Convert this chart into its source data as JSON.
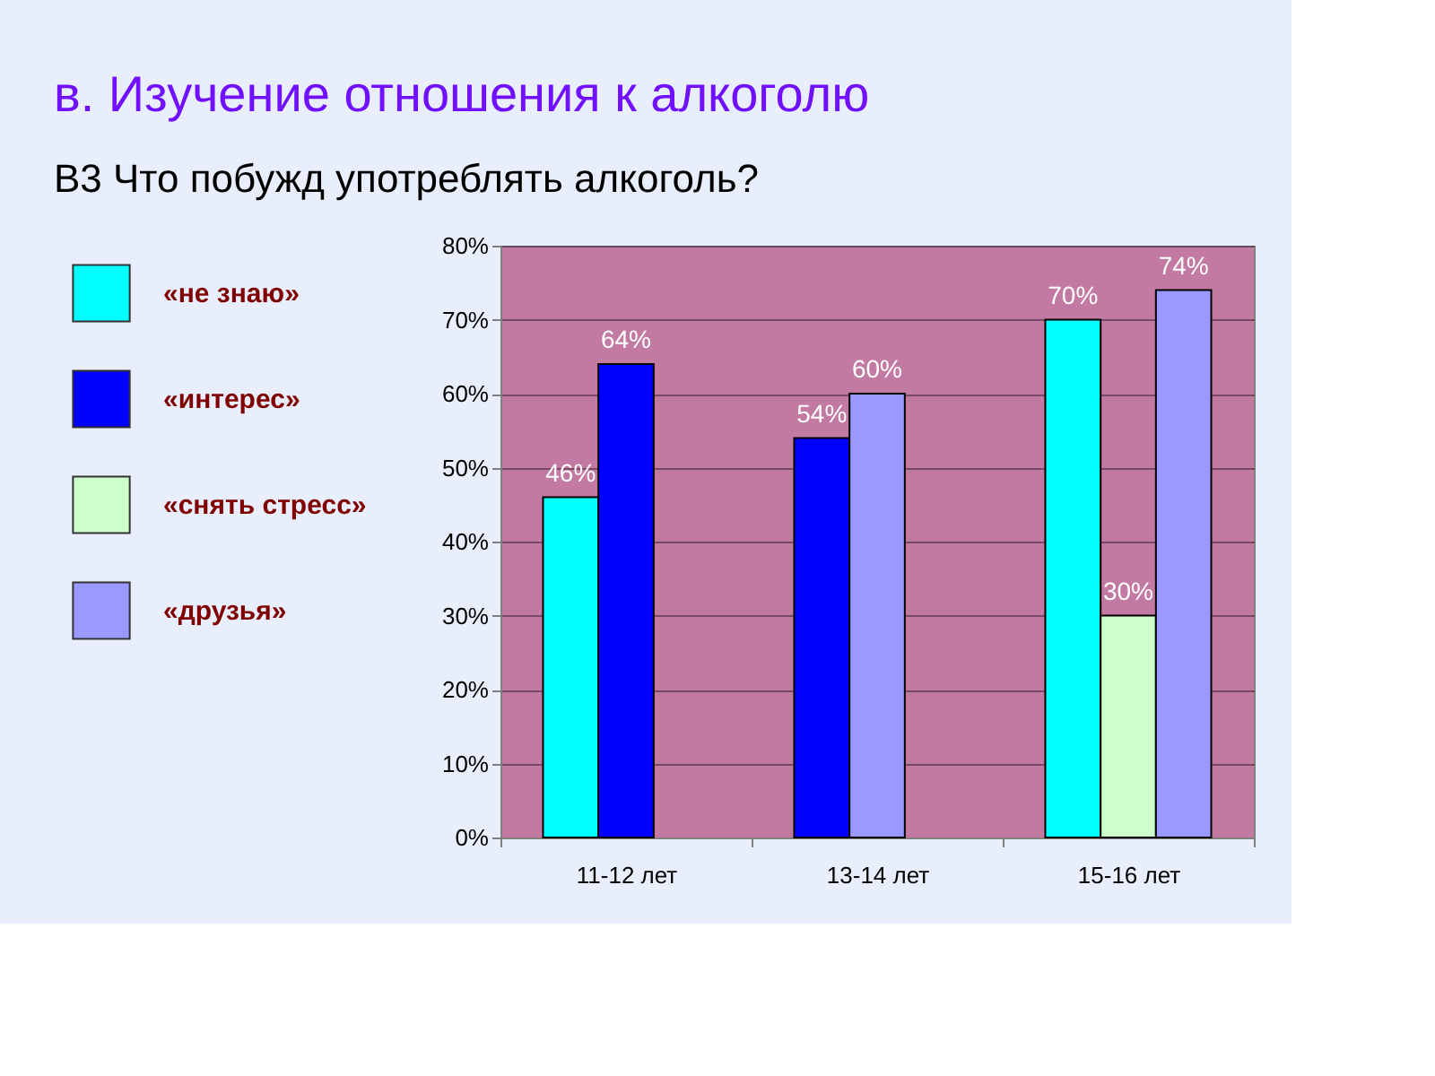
{
  "chart_data": {
    "type": "bar",
    "title": "в. Изучение отношения к алкоголю",
    "subtitle": "В3 Что побужд употреблять алкоголь?",
    "categories": [
      "11-12 лет",
      "13-14 лет",
      "15-16 лет"
    ],
    "series": [
      {
        "name": "«не знаю»",
        "color": "#00ffff",
        "values": [
          46,
          null,
          70
        ],
        "value_labels": [
          "46%",
          null,
          "70%"
        ]
      },
      {
        "name": "«интерес»",
        "color": "#0000ff",
        "values": [
          64,
          54,
          null
        ],
        "value_labels": [
          "64%",
          "54%",
          null
        ]
      },
      {
        "name": "«снять стресс»",
        "color": "#ccffcc",
        "values": [
          null,
          null,
          30
        ],
        "value_labels": [
          null,
          null,
          "30%"
        ]
      },
      {
        "name": "«друзья»",
        "color": "#9999ff",
        "values": [
          null,
          60,
          74
        ],
        "value_labels": [
          null,
          "60%",
          "74%"
        ]
      }
    ],
    "ylim": [
      0,
      80
    ],
    "yticks": [
      {
        "value": 0,
        "label": "0%"
      },
      {
        "value": 10,
        "label": "10%"
      },
      {
        "value": 20,
        "label": "20%"
      },
      {
        "value": 30,
        "label": "30%"
      },
      {
        "value": 40,
        "label": "40%"
      },
      {
        "value": 50,
        "label": "50%"
      },
      {
        "value": 60,
        "label": "60%"
      },
      {
        "value": 70,
        "label": "70%"
      },
      {
        "value": 80,
        "label": "80%"
      }
    ],
    "grid": "y",
    "legend": "left"
  }
}
